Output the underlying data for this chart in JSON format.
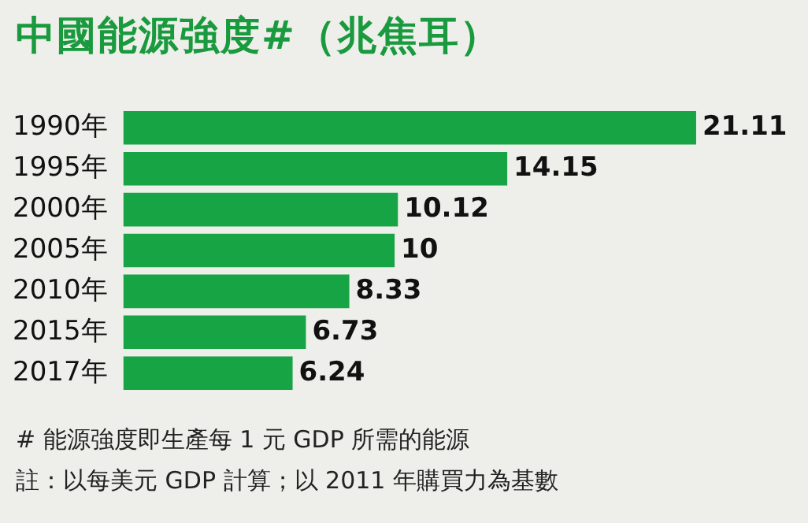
{
  "chart_data": {
    "type": "bar",
    "orientation": "horizontal",
    "title": "中國能源強度#（兆焦耳）",
    "categories": [
      "1990年",
      "1995年",
      "2000年",
      "2005年",
      "2010年",
      "2015年",
      "2017年"
    ],
    "values": [
      21.11,
      14.15,
      10.12,
      10,
      8.33,
      6.73,
      6.24
    ],
    "color": "#17a444",
    "data_labels": true,
    "annotations": [
      "# 能源強度即生產每 1 元 GDP 所需的能源",
      "註：以每美元 GDP 計算；以 2011 年購買力為基數"
    ]
  }
}
